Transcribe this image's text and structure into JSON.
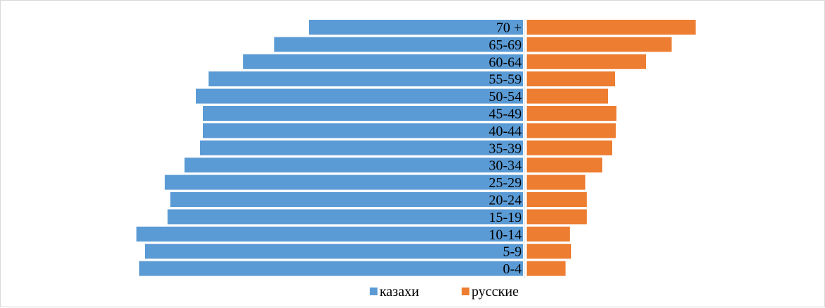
{
  "chart_data": {
    "type": "bar",
    "orientation": "horizontal",
    "layout": "population-pyramid",
    "categories": [
      "0-4",
      "5-9",
      "10-14",
      "15-19",
      "20-24",
      "25-29",
      "30-34",
      "35-39",
      "40-44",
      "45-49",
      "50-54",
      "55-59",
      "60-64",
      "65-69",
      "70 +"
    ],
    "series": [
      {
        "name": "казахи",
        "color": "#5b9bd5",
        "side": "left",
        "values": [
          543,
          535,
          547,
          503,
          499,
          507,
          479,
          457,
          453,
          453,
          463,
          445,
          396,
          352,
          303
        ]
      },
      {
        "name": "русские",
        "color": "#ed7d31",
        "side": "right",
        "values": [
          55,
          63,
          61,
          85,
          85,
          83,
          107,
          121,
          126,
          127,
          115,
          125,
          169,
          205,
          239
        ]
      }
    ],
    "title": "",
    "xlabel": "",
    "ylabel": "",
    "grid": false,
    "legend_position": "bottom"
  }
}
